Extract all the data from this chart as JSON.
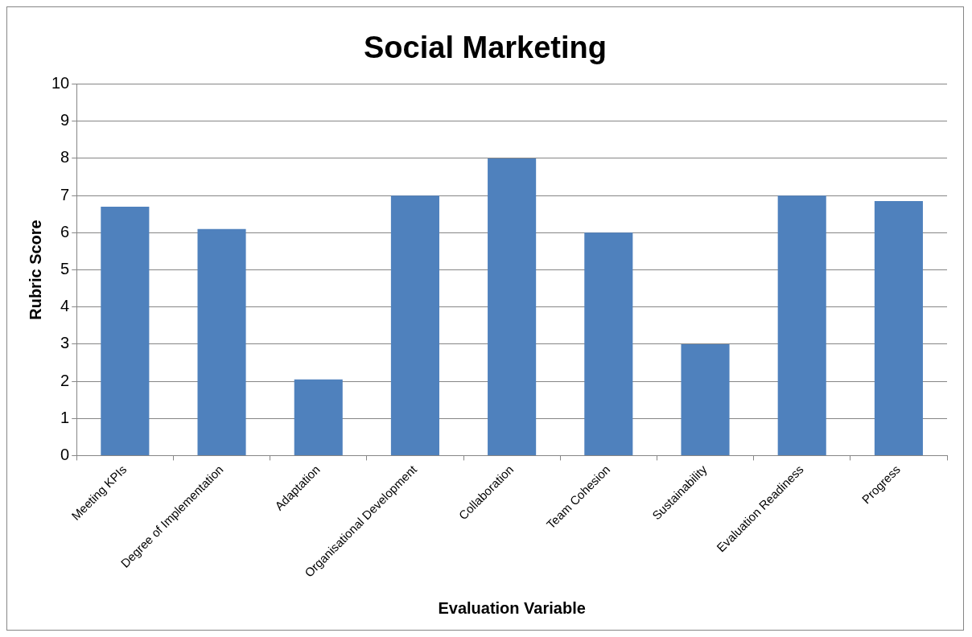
{
  "chart_data": {
    "type": "bar",
    "title": "Social Marketing",
    "xlabel": "Evaluation Variable",
    "ylabel": "Rubric Score",
    "categories": [
      "Meeting KPIs",
      "Degree of Implementation",
      "Adaptation",
      "Organisational Development",
      "Collaboration",
      "Team Cohesion",
      "Sustainability",
      "Evaluation Readiness",
      "Progress"
    ],
    "values": [
      6.7,
      6.1,
      2.05,
      7,
      8,
      6,
      3,
      7,
      6.85
    ],
    "color": "#4f81bd",
    "ylim": [
      0,
      10
    ],
    "yticks": [
      0,
      1,
      2,
      3,
      4,
      5,
      6,
      7,
      8,
      9,
      10
    ],
    "grid": "y",
    "legend": false
  }
}
